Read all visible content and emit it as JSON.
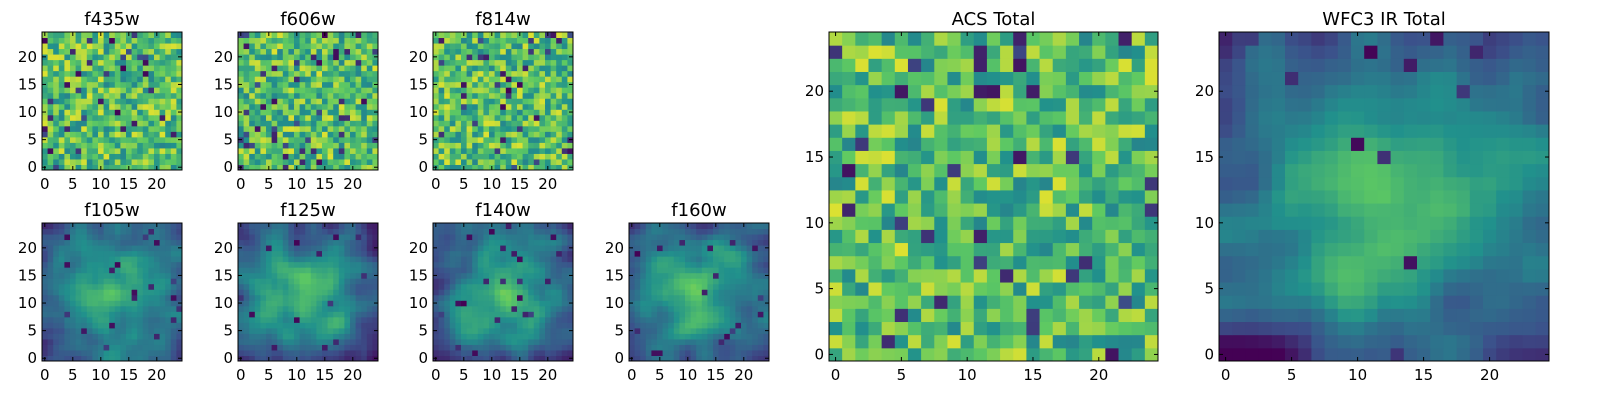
{
  "figure": {
    "colormap": "viridis",
    "colormap_stops": [
      "#440154",
      "#3b528b",
      "#21918c",
      "#5ec962",
      "#fde725"
    ],
    "frame_color": "#000000"
  },
  "chart_data": [
    {
      "id": "f435w",
      "type": "heatmap",
      "title": "f435w",
      "grid_size": 25,
      "xlim": [
        0,
        24
      ],
      "ylim": [
        0,
        24
      ],
      "xticks": [
        0,
        5,
        10,
        15,
        20
      ],
      "yticks": [
        0,
        5,
        10,
        15,
        20
      ],
      "xlabel": "",
      "ylabel": "",
      "pattern": "noise",
      "seed": 11
    },
    {
      "id": "f606w",
      "type": "heatmap",
      "title": "f606w",
      "grid_size": 25,
      "xlim": [
        0,
        24
      ],
      "ylim": [
        0,
        24
      ],
      "xticks": [
        0,
        5,
        10,
        15,
        20
      ],
      "yticks": [
        0,
        5,
        10,
        15,
        20
      ],
      "xlabel": "",
      "ylabel": "",
      "pattern": "noise",
      "seed": 23
    },
    {
      "id": "f814w",
      "type": "heatmap",
      "title": "f814w",
      "grid_size": 25,
      "xlim": [
        0,
        24
      ],
      "ylim": [
        0,
        24
      ],
      "xticks": [
        0,
        5,
        10,
        15,
        20
      ],
      "yticks": [
        0,
        5,
        10,
        15,
        20
      ],
      "xlabel": "",
      "ylabel": "",
      "pattern": "noise",
      "seed": 37
    },
    {
      "id": "f105w",
      "type": "heatmap",
      "title": "f105w",
      "grid_size": 25,
      "xlim": [
        0,
        24
      ],
      "ylim": [
        0,
        24
      ],
      "xticks": [
        0,
        5,
        10,
        15,
        20
      ],
      "yticks": [
        0,
        5,
        10,
        15,
        20
      ],
      "xlabel": "",
      "ylabel": "",
      "pattern": "smooth",
      "seed": 41
    },
    {
      "id": "f125w",
      "type": "heatmap",
      "title": "f125w",
      "grid_size": 25,
      "xlim": [
        0,
        24
      ],
      "ylim": [
        0,
        24
      ],
      "xticks": [
        0,
        5,
        10,
        15,
        20
      ],
      "yticks": [
        0,
        5,
        10,
        15,
        20
      ],
      "xlabel": "",
      "ylabel": "",
      "pattern": "smooth",
      "seed": 53
    },
    {
      "id": "f140w",
      "type": "heatmap",
      "title": "f140w",
      "grid_size": 25,
      "xlim": [
        0,
        24
      ],
      "ylim": [
        0,
        24
      ],
      "xticks": [
        0,
        5,
        10,
        15,
        20
      ],
      "yticks": [
        0,
        5,
        10,
        15,
        20
      ],
      "xlabel": "",
      "ylabel": "",
      "pattern": "smooth",
      "seed": 67
    },
    {
      "id": "f160w",
      "type": "heatmap",
      "title": "f160w",
      "grid_size": 25,
      "xlim": [
        0,
        24
      ],
      "ylim": [
        0,
        24
      ],
      "xticks": [
        0,
        5,
        10,
        15,
        20
      ],
      "yticks": [
        0,
        5,
        10,
        15,
        20
      ],
      "xlabel": "",
      "ylabel": "",
      "pattern": "smooth",
      "seed": 71
    },
    {
      "id": "acs-total",
      "type": "heatmap",
      "title": "ACS Total",
      "grid_size": 25,
      "xlim": [
        0,
        24
      ],
      "ylim": [
        0,
        24
      ],
      "xticks": [
        0,
        5,
        10,
        15,
        20
      ],
      "yticks": [
        0,
        5,
        10,
        15,
        20
      ],
      "xlabel": "",
      "ylabel": "",
      "pattern": "noise",
      "seed": 83
    },
    {
      "id": "wfc3-ir-total",
      "type": "heatmap",
      "title": "WFC3 IR Total",
      "grid_size": 25,
      "xlim": [
        0,
        24
      ],
      "ylim": [
        0,
        24
      ],
      "xticks": [
        0,
        5,
        10,
        15,
        20
      ],
      "yticks": [
        0,
        5,
        10,
        15,
        20
      ],
      "xlabel": "",
      "ylabel": "",
      "pattern": "smooth",
      "seed": 97
    }
  ]
}
